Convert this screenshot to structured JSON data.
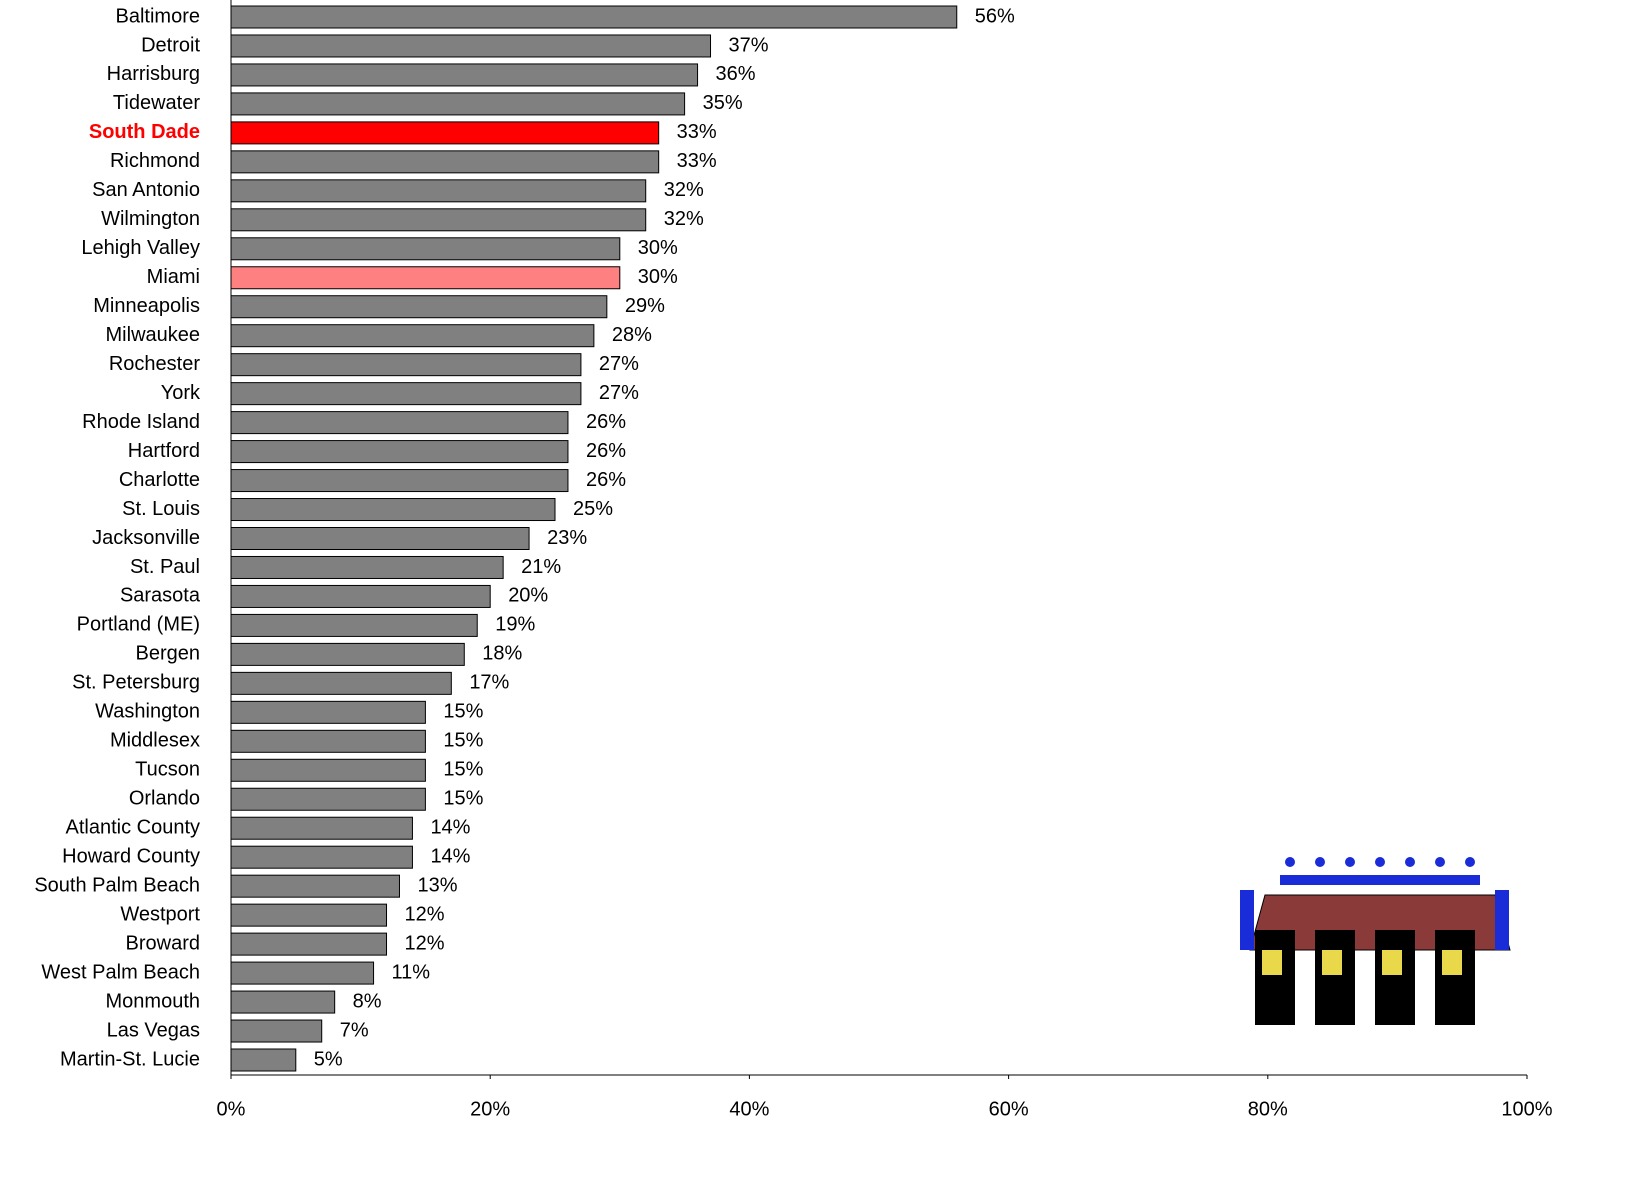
{
  "chart_data": {
    "type": "hbar",
    "categories": [
      "Baltimore",
      "Detroit",
      "Harrisburg",
      "Tidewater",
      "South Dade",
      "Richmond",
      "San Antonio",
      "Wilmington",
      "Lehigh Valley",
      "Miami",
      "Minneapolis",
      "Milwaukee",
      "Rochester",
      "York",
      "Rhode Island",
      "Hartford",
      "Charlotte",
      "St. Louis",
      "Jacksonville",
      "St. Paul",
      "Sarasota",
      "Portland (ME)",
      "Bergen",
      "St. Petersburg",
      "Washington",
      "Middlesex",
      "Tucson",
      "Orlando",
      "Atlantic County",
      "Howard County",
      "South Palm Beach",
      "Westport",
      "Broward",
      "West Palm Beach",
      "Monmouth",
      "Las Vegas",
      "Martin-St. Lucie"
    ],
    "values": [
      56,
      37,
      36,
      35,
      33,
      33,
      32,
      32,
      30,
      30,
      29,
      28,
      27,
      27,
      26,
      26,
      26,
      25,
      23,
      21,
      20,
      19,
      18,
      17,
      15,
      15,
      15,
      15,
      14,
      14,
      13,
      12,
      12,
      11,
      8,
      7,
      5
    ],
    "value_labels": [
      "56%",
      "37%",
      "36%",
      "35%",
      "33%",
      "33%",
      "32%",
      "32%",
      "30%",
      "30%",
      "29%",
      "28%",
      "27%",
      "27%",
      "26%",
      "26%",
      "26%",
      "25%",
      "23%",
      "21%",
      "20%",
      "19%",
      "18%",
      "17%",
      "15%",
      "15%",
      "15%",
      "15%",
      "14%",
      "14%",
      "13%",
      "12%",
      "12%",
      "11%",
      "8%",
      "7%",
      "5%"
    ],
    "colors": [
      "#808080",
      "#808080",
      "#808080",
      "#808080",
      "#ff0000",
      "#808080",
      "#808080",
      "#808080",
      "#808080",
      "#ff8080",
      "#808080",
      "#808080",
      "#808080",
      "#808080",
      "#808080",
      "#808080",
      "#808080",
      "#808080",
      "#808080",
      "#808080",
      "#808080",
      "#808080",
      "#808080",
      "#808080",
      "#808080",
      "#808080",
      "#808080",
      "#808080",
      "#808080",
      "#808080",
      "#808080",
      "#808080",
      "#808080",
      "#808080",
      "#808080",
      "#808080",
      "#808080"
    ],
    "label_colors": [
      "#000000",
      "#000000",
      "#000000",
      "#000000",
      "#ff0000",
      "#000000",
      "#000000",
      "#000000",
      "#000000",
      "#000000",
      "#000000",
      "#000000",
      "#000000",
      "#000000",
      "#000000",
      "#000000",
      "#000000",
      "#000000",
      "#000000",
      "#000000",
      "#000000",
      "#000000",
      "#000000",
      "#000000",
      "#000000",
      "#000000",
      "#000000",
      "#000000",
      "#000000",
      "#000000",
      "#000000",
      "#000000",
      "#000000",
      "#000000",
      "#000000",
      "#000000",
      "#000000"
    ],
    "label_weights": [
      "normal",
      "normal",
      "normal",
      "normal",
      "bold",
      "normal",
      "normal",
      "normal",
      "normal",
      "normal",
      "normal",
      "normal",
      "normal",
      "normal",
      "normal",
      "normal",
      "normal",
      "normal",
      "normal",
      "normal",
      "normal",
      "normal",
      "normal",
      "normal",
      "normal",
      "normal",
      "normal",
      "normal",
      "normal",
      "normal",
      "normal",
      "normal",
      "normal",
      "normal",
      "normal",
      "normal",
      "normal"
    ],
    "xlim": [
      0,
      100
    ],
    "xticks": [
      {
        "value": 0,
        "label": "0%"
      },
      {
        "value": 20,
        "label": "20%"
      },
      {
        "value": 40,
        "label": "40%"
      },
      {
        "value": 60,
        "label": "60%"
      },
      {
        "value": 80,
        "label": "80%"
      },
      {
        "value": 100,
        "label": "100%"
      }
    ],
    "grid": false
  }
}
